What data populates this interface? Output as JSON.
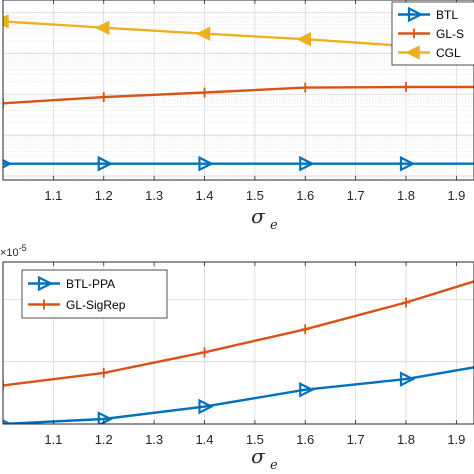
{
  "chart_data": [
    {
      "type": "line",
      "title": "",
      "xlabel": "σ",
      "xlabel_sub": "e",
      "ylabel": "",
      "y_scale": "log",
      "grid": true,
      "legend_position": "top-right",
      "x": [
        1.0,
        1.2,
        1.4,
        1.6,
        1.8,
        2.0
      ],
      "xticks": [
        "1.1",
        "1.2",
        "1.3",
        "1.4",
        "1.5",
        "1.6",
        "1.7",
        "1.8",
        "1.9"
      ],
      "series": [
        {
          "name": "BTL",
          "color": "#0072BD",
          "marker": "triangle-right",
          "values": [
            0.02,
            0.02,
            0.02,
            0.02,
            0.02,
            0.02
          ]
        },
        {
          "name": "GL-S",
          "color": "#D95319",
          "marker": "plus",
          "values": [
            0.6,
            0.85,
            1.1,
            1.45,
            1.5,
            1.5
          ]
        },
        {
          "name": "CGL",
          "color": "#EDB120",
          "marker": "triangle-left",
          "values": [
            60,
            42,
            30,
            22,
            15,
            11
          ]
        }
      ]
    },
    {
      "type": "line",
      "title": "",
      "xlabel": "σ",
      "xlabel_sub": "e",
      "ylabel": "",
      "y_exponent": "×10",
      "y_exponent_power": "-5",
      "grid": true,
      "legend_position": "top-left",
      "x": [
        1.0,
        1.2,
        1.4,
        1.6,
        1.8,
        2.0
      ],
      "xticks": [
        "1.1",
        "1.2",
        "1.3",
        "1.4",
        "1.5",
        "1.6",
        "1.7",
        "1.8",
        "1.9"
      ],
      "series": [
        {
          "name": "BTL-PPA",
          "color": "#0072BD",
          "marker": "triangle-right",
          "values": [
            0.0,
            0.08,
            0.28,
            0.55,
            0.72,
            1.0
          ]
        },
        {
          "name": "GL-SigRep",
          "color": "#D95319",
          "marker": "plus",
          "values": [
            0.62,
            0.82,
            1.15,
            1.52,
            1.95,
            2.45
          ]
        }
      ]
    }
  ]
}
